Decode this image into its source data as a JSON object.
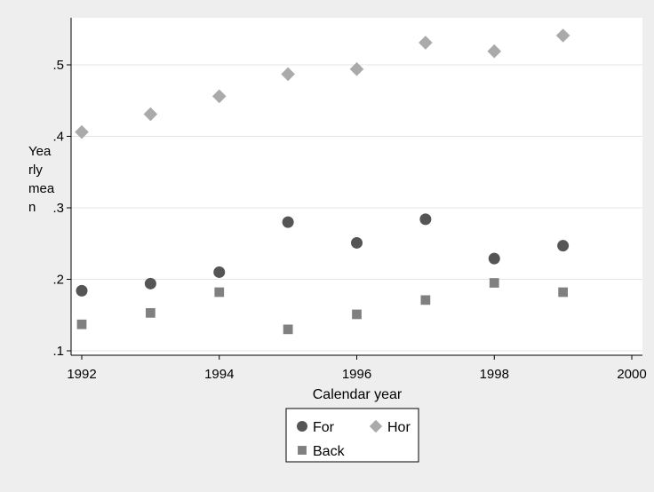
{
  "chart_data": {
    "type": "scatter",
    "xlabel": "Calendar year",
    "ylabel_lines": [
      "Yea",
      "rly",
      "mea",
      "n"
    ],
    "xlim": [
      1992,
      2000
    ],
    "ylim": [
      0.1,
      0.55
    ],
    "x_ticks": [
      {
        "value": 1992,
        "label": "1992"
      },
      {
        "value": 1994,
        "label": "1994"
      },
      {
        "value": 1996,
        "label": "1996"
      },
      {
        "value": 1998,
        "label": "1998"
      },
      {
        "value": 2000,
        "label": "2000"
      }
    ],
    "y_ticks": [
      {
        "value": 0.1,
        "label": ".1"
      },
      {
        "value": 0.2,
        "label": ".2"
      },
      {
        "value": 0.3,
        "label": ".3"
      },
      {
        "value": 0.4,
        "label": ".4"
      },
      {
        "value": 0.5,
        "label": ".5"
      }
    ],
    "grid": true,
    "legend_position": "bottom",
    "series": [
      {
        "name": "For",
        "marker": "circle",
        "color": "#555555",
        "x": [
          1992,
          1993,
          1994,
          1995,
          1996,
          1997,
          1998,
          1999
        ],
        "y": [
          0.184,
          0.194,
          0.21,
          0.28,
          0.251,
          0.284,
          0.229,
          0.247
        ]
      },
      {
        "name": "Hor",
        "marker": "diamond",
        "color": "#aaaaaa",
        "x": [
          1992,
          1993,
          1994,
          1995,
          1996,
          1997,
          1998,
          1999
        ],
        "y": [
          0.406,
          0.431,
          0.456,
          0.487,
          0.494,
          0.531,
          0.519,
          0.541
        ]
      },
      {
        "name": "Back",
        "marker": "square",
        "color": "#808080",
        "x": [
          1992,
          1993,
          1994,
          1995,
          1996,
          1997,
          1998,
          1999
        ],
        "y": [
          0.137,
          0.153,
          0.182,
          0.13,
          0.151,
          0.171,
          0.195,
          0.182
        ]
      }
    ]
  }
}
